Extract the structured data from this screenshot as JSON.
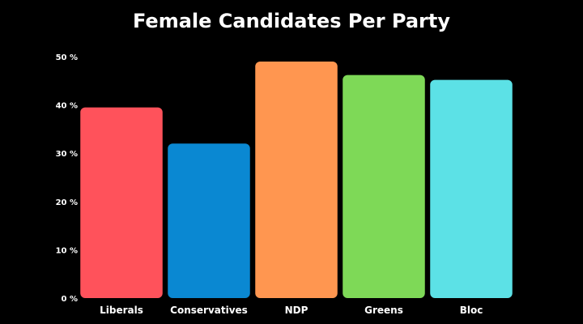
{
  "chart_data": {
    "type": "bar",
    "title": "Female Candidates Per Party",
    "xlabel": "",
    "ylabel": "",
    "categories": [
      "Liberals",
      "Conservatives",
      "NDP",
      "Greens",
      "Bloc"
    ],
    "values": [
      39.5,
      32,
      49,
      46.2,
      45.2
    ],
    "colors": [
      "#ff525b",
      "#0a88d2",
      "#ff9650",
      "#7ed957",
      "#5ce1e6"
    ],
    "ylim": [
      0,
      50
    ],
    "yticks": [
      0,
      10,
      20,
      30,
      40,
      50
    ],
    "ytick_labels": [
      "0 %",
      "10 %",
      "20 %",
      "30 %",
      "40 %",
      "50 %"
    ],
    "grid": false,
    "background": "#000000"
  }
}
